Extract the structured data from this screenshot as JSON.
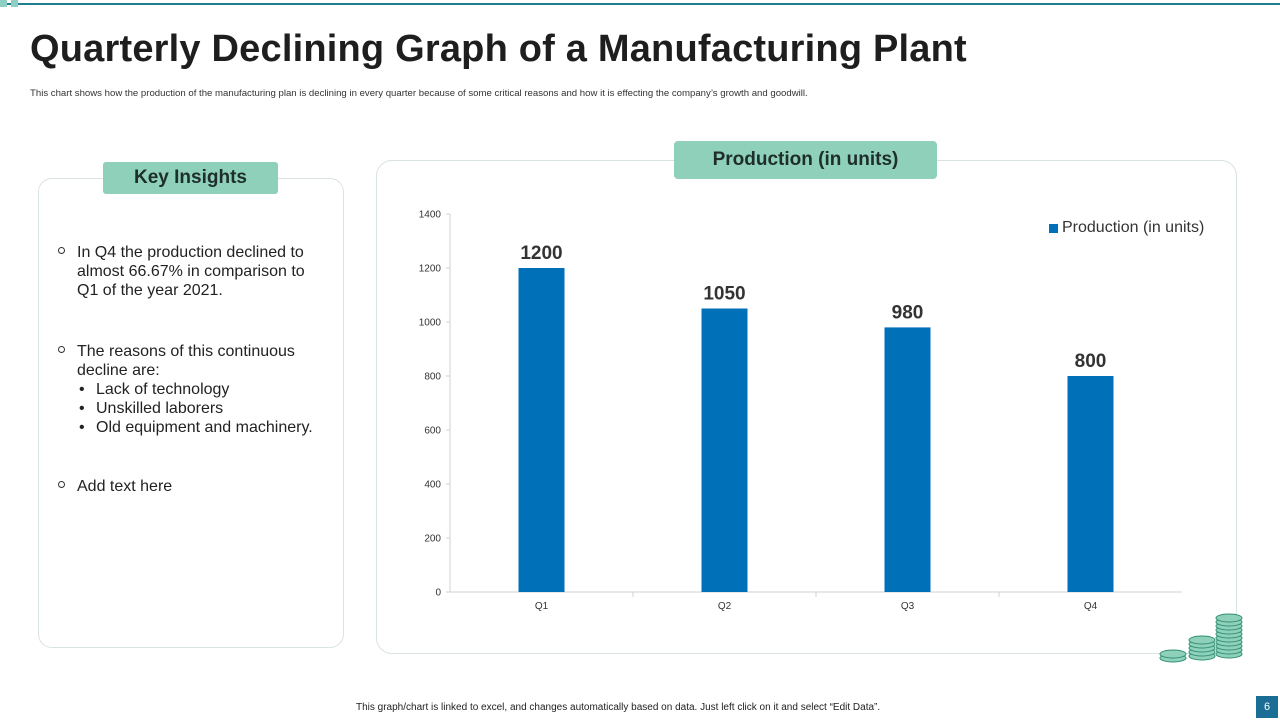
{
  "page": {
    "title": "Quarterly Declining Graph of a Manufacturing Plant",
    "subtitle": "This chart shows  how the production of the manufacturing plan is declining in  every quarter because of some critical reasons  and how it is effecting the company’s growth and goodwill.",
    "footer_note": "This graph/chart is linked to excel, and changes automatically based on data. Just left click on it and select “Edit Data”.",
    "page_number": "6"
  },
  "insights": {
    "header": "Key Insights",
    "items": [
      {
        "text": "In Q4 the production declined to almost 66.67% in comparison to Q1 of the year 2021."
      },
      {
        "text": "The reasons of this continuous decline are:",
        "subitems": [
          "Lack of technology",
          "Unskilled laborers",
          "Old equipment and machinery."
        ]
      },
      {
        "text": "Add text here"
      }
    ]
  },
  "chart_header": "Production (in units)",
  "colors": {
    "bar": "#0070b8",
    "accent": "#8fd0bb",
    "page_number_bg": "#1a6e96",
    "top_line": "#1f7f8f"
  },
  "chart_data": {
    "type": "bar",
    "categories": [
      "Q1",
      "Q2",
      "Q3",
      "Q4"
    ],
    "series": [
      {
        "name": "Production (in units)",
        "values": [
          1200,
          1050,
          980,
          800
        ]
      }
    ],
    "ylim": [
      0,
      1400
    ],
    "yticks": [
      0,
      200,
      400,
      600,
      800,
      1000,
      1200,
      1400
    ],
    "legend": "top-right",
    "grid": false,
    "data_labels": true
  }
}
